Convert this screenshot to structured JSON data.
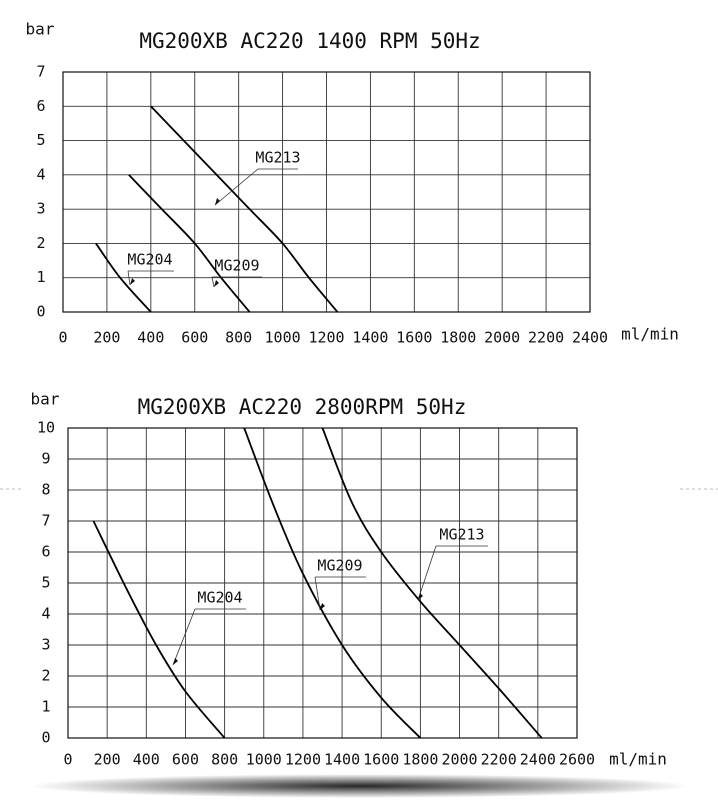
{
  "chart_data": [
    {
      "type": "line",
      "title": "MG200XB AC220 1400 RPM 50Hz",
      "y_label": "bar",
      "x_label": "ml/min",
      "xlim": [
        0,
        2400
      ],
      "xticks": [
        0,
        200,
        400,
        600,
        800,
        1000,
        1200,
        1400,
        1600,
        1800,
        2000,
        2200,
        2400
      ],
      "ylim": [
        0,
        7
      ],
      "yticks": [
        0,
        1,
        2,
        3,
        4,
        5,
        6,
        7
      ],
      "grid": true,
      "series": [
        {
          "name": "MG204",
          "color": "#000000",
          "x": [
            150,
            260,
            400
          ],
          "values": [
            2,
            1,
            0
          ]
        },
        {
          "name": "MG209",
          "color": "#000000",
          "x": [
            300,
            450,
            600,
            720,
            850
          ],
          "values": [
            4,
            3,
            2,
            1,
            0
          ]
        },
        {
          "name": "MG213",
          "color": "#000000",
          "x": [
            400,
            550,
            700,
            850,
            1000,
            1120,
            1250
          ],
          "values": [
            6,
            5,
            4,
            3,
            2,
            1,
            0
          ]
        }
      ]
    },
    {
      "type": "line",
      "title": "MG200XB AC220 2800RPM 50Hz",
      "y_label": "bar",
      "x_label": "ml/min",
      "xlim": [
        0,
        2600
      ],
      "xticks": [
        0,
        200,
        400,
        600,
        800,
        1000,
        1200,
        1400,
        1600,
        1800,
        2000,
        2200,
        2400,
        2600
      ],
      "ylim": [
        0,
        10
      ],
      "yticks": [
        0,
        1,
        2,
        3,
        4,
        5,
        6,
        7,
        8,
        9,
        10
      ],
      "grid": true,
      "series": [
        {
          "name": "MG204",
          "color": "#000000",
          "x": [
            130,
            300,
            450,
            600,
            800
          ],
          "values": [
            7,
            4.8,
            3,
            1.5,
            0
          ]
        },
        {
          "name": "MG209",
          "color": "#000000",
          "x": [
            900,
            1050,
            1200,
            1400,
            1600,
            1800
          ],
          "values": [
            10,
            7.5,
            5.3,
            3,
            1.3,
            0
          ]
        },
        {
          "name": "MG213",
          "color": "#000000",
          "x": [
            1300,
            1450,
            1600,
            1800,
            2000,
            2200,
            2420
          ],
          "values": [
            10,
            7.6,
            6,
            4.4,
            3,
            1.6,
            0
          ]
        }
      ]
    }
  ]
}
